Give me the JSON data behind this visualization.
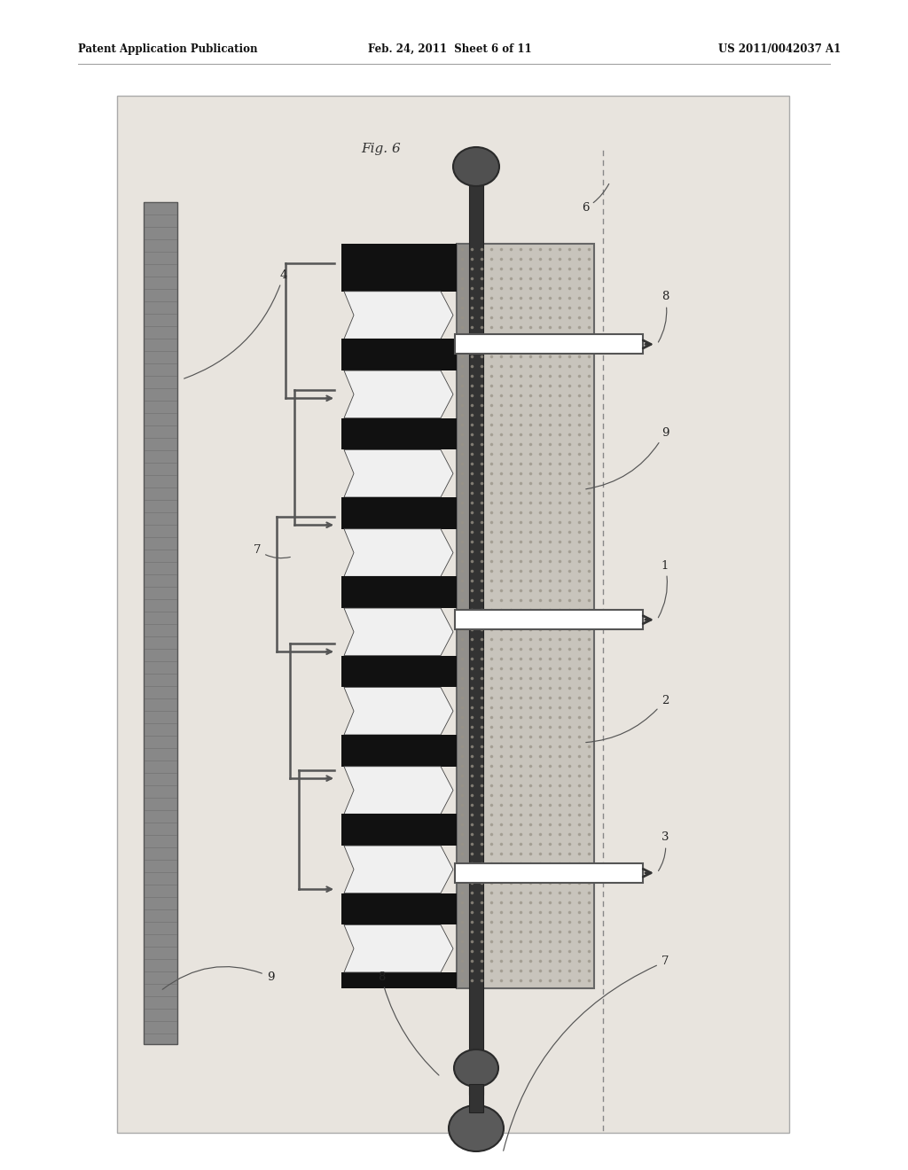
{
  "header_left": "Patent Application Publication",
  "header_center": "Feb. 24, 2011  Sheet 6 of 11",
  "header_right": "US 2011/0042037 A1",
  "fig_label": "Fig. 6",
  "bg_outer": "#ffffff",
  "bg_diagram": "#e8e4de",
  "plate_color_light": "#aaaaaa",
  "plate_color_dark": "#777777",
  "fin_dark": "#1a1a1a",
  "fin_light": "#f5f5f5",
  "hx_light": "#c8c4bc",
  "hx_dark_stripe": "#555555",
  "pipe_color": "#3a3a3a",
  "sphere_dark": "#555555",
  "tube_white": "#ffffff",
  "label_color": "#222222",
  "dashes_color": "#888888",
  "bracket_color": "#555555"
}
